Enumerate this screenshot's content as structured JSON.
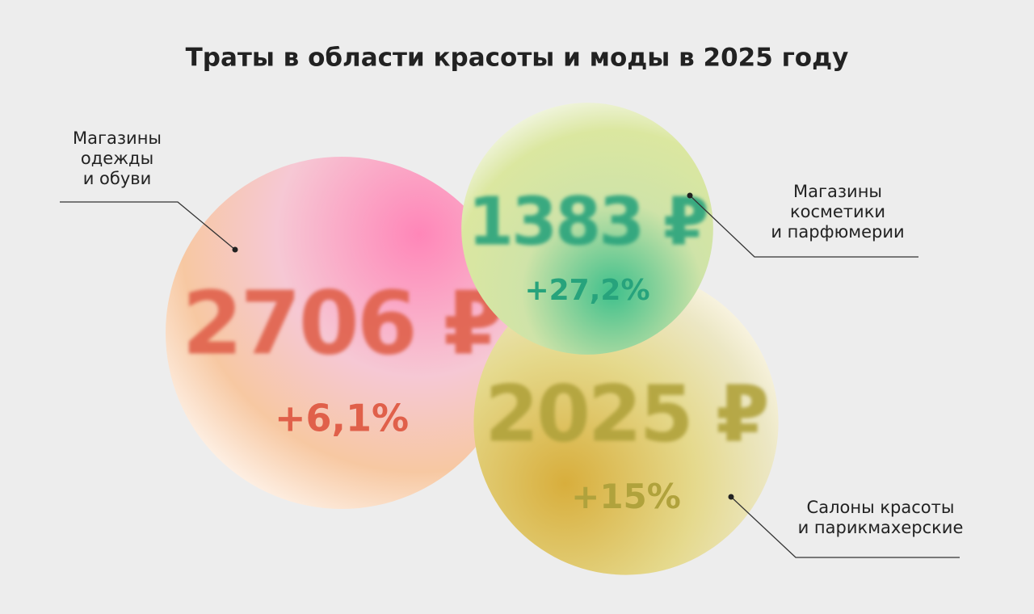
{
  "chart_data": {
    "type": "bubble",
    "title": "Траты в области красоты и моды в 2025 году",
    "categories": [
      "Магазины\nодежды\nи обуви",
      "Магазины\nкосметики\nи парфюмерии",
      "Салоны красоты\nи парикмахерские"
    ],
    "values": [
      2706,
      1383,
      2025
    ],
    "value_labels": [
      "2706 ₽",
      "1383 ₽",
      "2025 ₽"
    ],
    "changes": [
      6.1,
      27.2,
      15
    ],
    "change_labels": [
      "+6,1%",
      "+27,2%",
      "+15%"
    ],
    "colors": [
      "#e0604a",
      "#27a37c",
      "#b0a23c"
    ]
  }
}
